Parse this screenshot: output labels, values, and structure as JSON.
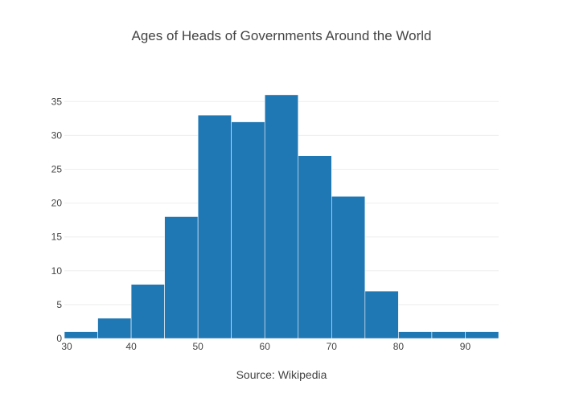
{
  "chart_data": {
    "type": "bar",
    "title": "Ages of Heads of Governments Around the World",
    "xlabel": "Source: Wikipedia",
    "ylabel": "",
    "bin_width": 5,
    "bins": [
      {
        "start": 30,
        "end": 35,
        "count": 1
      },
      {
        "start": 35,
        "end": 40,
        "count": 3
      },
      {
        "start": 40,
        "end": 45,
        "count": 8
      },
      {
        "start": 45,
        "end": 50,
        "count": 18
      },
      {
        "start": 50,
        "end": 55,
        "count": 33
      },
      {
        "start": 55,
        "end": 60,
        "count": 32
      },
      {
        "start": 60,
        "end": 65,
        "count": 36
      },
      {
        "start": 65,
        "end": 70,
        "count": 27
      },
      {
        "start": 70,
        "end": 75,
        "count": 21
      },
      {
        "start": 75,
        "end": 80,
        "count": 7
      },
      {
        "start": 80,
        "end": 85,
        "count": 1
      },
      {
        "start": 85,
        "end": 90,
        "count": 1
      },
      {
        "start": 90,
        "end": 95,
        "count": 1
      }
    ],
    "xlim": [
      30,
      95
    ],
    "ylim": [
      0,
      38
    ],
    "x_ticks": [
      "30",
      "40",
      "50",
      "60",
      "70",
      "80",
      "90"
    ],
    "y_ticks": [
      "0",
      "5",
      "10",
      "15",
      "20",
      "25",
      "30",
      "35"
    ],
    "grid": true,
    "bar_color": "#1f77b4"
  }
}
